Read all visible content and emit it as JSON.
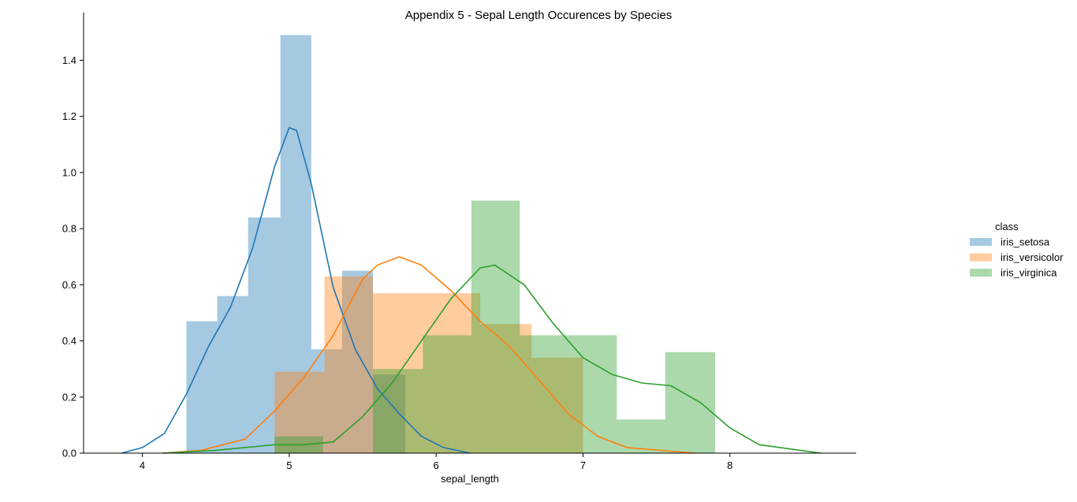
{
  "chart_data": {
    "type": "histogram",
    "title": "Appendix 5 - Sepal Length Occurences by Species",
    "xlabel": "sepal_length",
    "ylabel": "",
    "xlim": [
      3.6,
      8.86
    ],
    "ylim": [
      0,
      1.57
    ],
    "x_ticks": [
      4,
      5,
      6,
      7,
      8
    ],
    "y_ticks": [
      0.0,
      0.2,
      0.4,
      0.6,
      0.8,
      1.0,
      1.2,
      1.4
    ],
    "grid": false,
    "legend": {
      "title": "class",
      "position": "right"
    },
    "series": [
      {
        "name": "iris_setosa",
        "color": "#1f77b4",
        "bins": [
          {
            "x0": 4.3,
            "x1": 4.51,
            "y": 0.47
          },
          {
            "x0": 4.51,
            "x1": 4.72,
            "y": 0.56
          },
          {
            "x0": 4.72,
            "x1": 4.94,
            "y": 0.84
          },
          {
            "x0": 4.94,
            "x1": 5.15,
            "y": 1.49
          },
          {
            "x0": 5.15,
            "x1": 5.36,
            "y": 0.37
          },
          {
            "x0": 5.36,
            "x1": 5.57,
            "y": 0.65
          },
          {
            "x0": 5.57,
            "x1": 5.79,
            "y": 0.28
          }
        ],
        "kde": [
          [
            3.86,
            0.0
          ],
          [
            4.0,
            0.02
          ],
          [
            4.15,
            0.07
          ],
          [
            4.3,
            0.21
          ],
          [
            4.45,
            0.38
          ],
          [
            4.6,
            0.52
          ],
          [
            4.75,
            0.73
          ],
          [
            4.9,
            1.02
          ],
          [
            5.0,
            1.16
          ],
          [
            5.05,
            1.15
          ],
          [
            5.15,
            0.96
          ],
          [
            5.3,
            0.59
          ],
          [
            5.45,
            0.37
          ],
          [
            5.6,
            0.23
          ],
          [
            5.75,
            0.14
          ],
          [
            5.9,
            0.06
          ],
          [
            6.05,
            0.02
          ],
          [
            6.23,
            0.0
          ]
        ]
      },
      {
        "name": "iris_versicolor",
        "color": "#ff7f0e",
        "bins": [
          {
            "x0": 4.9,
            "x1": 5.24,
            "y": 0.29
          },
          {
            "x0": 5.24,
            "x1": 5.57,
            "y": 0.63
          },
          {
            "x0": 5.57,
            "x1": 5.91,
            "y": 0.57
          },
          {
            "x0": 5.91,
            "x1": 6.3,
            "y": 0.57
          },
          {
            "x0": 6.3,
            "x1": 6.65,
            "y": 0.46
          },
          {
            "x0": 6.65,
            "x1": 7.0,
            "y": 0.34
          }
        ],
        "kde": [
          [
            4.14,
            0.0
          ],
          [
            4.4,
            0.01
          ],
          [
            4.7,
            0.05
          ],
          [
            4.9,
            0.15
          ],
          [
            5.1,
            0.27
          ],
          [
            5.3,
            0.42
          ],
          [
            5.5,
            0.62
          ],
          [
            5.6,
            0.67
          ],
          [
            5.75,
            0.7
          ],
          [
            5.9,
            0.67
          ],
          [
            6.1,
            0.58
          ],
          [
            6.3,
            0.47
          ],
          [
            6.5,
            0.38
          ],
          [
            6.7,
            0.26
          ],
          [
            6.9,
            0.14
          ],
          [
            7.1,
            0.06
          ],
          [
            7.3,
            0.02
          ],
          [
            7.76,
            0.0
          ]
        ]
      },
      {
        "name": "iris_virginica",
        "color": "#2ca02c",
        "bins": [
          {
            "x0": 4.9,
            "x1": 5.23,
            "y": 0.06
          },
          {
            "x0": 5.57,
            "x1": 5.91,
            "y": 0.3
          },
          {
            "x0": 5.91,
            "x1": 6.24,
            "y": 0.42
          },
          {
            "x0": 6.24,
            "x1": 6.57,
            "y": 0.9
          },
          {
            "x0": 6.57,
            "x1": 6.9,
            "y": 0.42
          },
          {
            "x0": 6.9,
            "x1": 7.23,
            "y": 0.42
          },
          {
            "x0": 7.23,
            "x1": 7.56,
            "y": 0.12
          },
          {
            "x0": 7.56,
            "x1": 7.9,
            "y": 0.36
          }
        ],
        "kde": [
          [
            4.14,
            0.0
          ],
          [
            4.5,
            0.01
          ],
          [
            4.9,
            0.03
          ],
          [
            5.1,
            0.03
          ],
          [
            5.3,
            0.04
          ],
          [
            5.5,
            0.13
          ],
          [
            5.7,
            0.25
          ],
          [
            5.9,
            0.4
          ],
          [
            6.1,
            0.55
          ],
          [
            6.3,
            0.66
          ],
          [
            6.4,
            0.67
          ],
          [
            6.6,
            0.6
          ],
          [
            6.8,
            0.46
          ],
          [
            7.0,
            0.34
          ],
          [
            7.2,
            0.28
          ],
          [
            7.4,
            0.25
          ],
          [
            7.6,
            0.24
          ],
          [
            7.8,
            0.18
          ],
          [
            8.0,
            0.09
          ],
          [
            8.2,
            0.03
          ],
          [
            8.62,
            0.0
          ]
        ]
      }
    ]
  }
}
